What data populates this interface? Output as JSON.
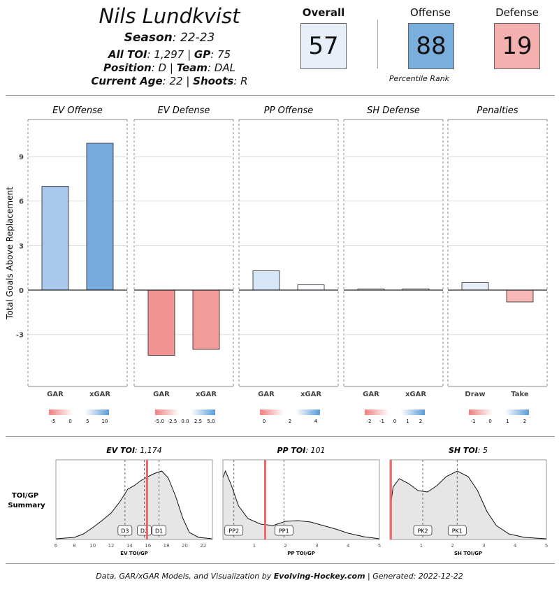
{
  "player": {
    "name": "Nils Lundkvist",
    "season_label": "Season",
    "season": "22-23",
    "toi_label": "All TOI",
    "toi": "1,297",
    "gp_label": "GP",
    "gp": "75",
    "position_label": "Position",
    "position": "D",
    "team_label": "Team",
    "team": "DAL",
    "age_label": "Current Age",
    "age": "22",
    "shoots_label": "Shoots",
    "shoots": "R"
  },
  "ranks": {
    "overall": {
      "label": "Overall",
      "value": "57",
      "color": "#e8eff9"
    },
    "offense": {
      "label": "Offense",
      "value": "88",
      "color": "#7aaedc"
    },
    "defense": {
      "label": "Defense",
      "value": "19",
      "color": "#f5b0b0"
    },
    "note": "Percentile Rank"
  },
  "chart_data": [
    {
      "type": "bar",
      "ylabel": "Total Goals Above Replacement",
      "ylim": [
        -6.5,
        11.5
      ],
      "yticks": [
        -3,
        0,
        3,
        6,
        9
      ],
      "grid": true,
      "panels": [
        {
          "title": "EV Offense",
          "categories": [
            "GAR",
            "xGAR"
          ],
          "values": [
            7.0,
            9.9
          ],
          "colors": [
            "#a9c8ec",
            "#77aadd"
          ],
          "legend_ticks": [
            "-5",
            "0",
            "5",
            "10"
          ]
        },
        {
          "title": "EV Defense",
          "categories": [
            "GAR",
            "xGAR"
          ],
          "values": [
            -4.4,
            -4.0
          ],
          "colors": [
            "#f29494",
            "#f39c9c"
          ],
          "legend_ticks": [
            "-5.0",
            "-2.5",
            "0.0",
            "2.5",
            "5.0"
          ]
        },
        {
          "title": "PP Offense",
          "categories": [
            "GAR",
            "xGAR"
          ],
          "values": [
            1.3,
            0.35
          ],
          "colors": [
            "#d7e6f7",
            "#fbfcff"
          ],
          "legend_ticks": [
            "0",
            "2",
            "4"
          ]
        },
        {
          "title": "SH Defense",
          "categories": [
            "GAR",
            "xGAR"
          ],
          "values": [
            0.07,
            0.08
          ],
          "colors": [
            "#f8fafd",
            "#f8fafd"
          ],
          "legend_ticks": [
            "-2",
            "-1",
            "0",
            "1",
            "2"
          ]
        },
        {
          "title": "Penalties",
          "categories": [
            "Draw",
            "Take"
          ],
          "values": [
            0.5,
            -0.8
          ],
          "colors": [
            "#e5edf9",
            "#f9b8b8"
          ],
          "legend_ticks": [
            "-1",
            "0",
            "1",
            "2"
          ]
        }
      ]
    },
    {
      "type": "area",
      "section_label": "TOI/GP Summary",
      "panels": [
        {
          "title_label": "EV TOI",
          "title_value": "1,174",
          "xlabel": "EV TOI/GP",
          "xlim": [
            6,
            23
          ],
          "xticks": [
            "6",
            "8",
            "10",
            "12",
            "14",
            "16",
            "18",
            "20",
            "22"
          ],
          "xtick_values": [
            6,
            8,
            10,
            12,
            14,
            16,
            18,
            20,
            22
          ],
          "marker": 15.9,
          "lines": [
            {
              "label": "D3",
              "x": 13.5
            },
            {
              "label": "D2",
              "x": 15.6
            },
            {
              "label": "D1",
              "x": 17.2
            }
          ],
          "density": [
            [
              6,
              0.01
            ],
            [
              7,
              0.02
            ],
            [
              8,
              0.03
            ],
            [
              9,
              0.08
            ],
            [
              10,
              0.17
            ],
            [
              11,
              0.27
            ],
            [
              12,
              0.38
            ],
            [
              13,
              0.55
            ],
            [
              13.8,
              0.72
            ],
            [
              14.5,
              0.77
            ],
            [
              15.2,
              0.84
            ],
            [
              16,
              0.9
            ],
            [
              16.8,
              0.95
            ],
            [
              17.5,
              0.98
            ],
            [
              18.2,
              0.88
            ],
            [
              19,
              0.62
            ],
            [
              19.8,
              0.3
            ],
            [
              20.5,
              0.1
            ],
            [
              21.5,
              0.03
            ],
            [
              23,
              0.01
            ]
          ]
        },
        {
          "title_label": "PP TOI",
          "title_value": "101",
          "xlabel": "PP TOI/GP",
          "xlim": [
            0,
            5
          ],
          "xticks": [
            "1",
            "2",
            "3",
            "4",
            "5"
          ],
          "xtick_values": [
            1,
            2,
            3,
            4,
            5
          ],
          "marker": 1.35,
          "lines": [
            {
              "label": "PP2",
              "x": 0.35
            },
            {
              "label": "PP1",
              "x": 1.95
            }
          ],
          "density": [
            [
              0,
              0.88
            ],
            [
              0.08,
              0.98
            ],
            [
              0.25,
              0.8
            ],
            [
              0.5,
              0.48
            ],
            [
              0.8,
              0.3
            ],
            [
              1.2,
              0.22
            ],
            [
              1.6,
              0.2
            ],
            [
              2.0,
              0.26
            ],
            [
              2.4,
              0.27
            ],
            [
              2.8,
              0.25
            ],
            [
              3.2,
              0.2
            ],
            [
              3.6,
              0.15
            ],
            [
              4.0,
              0.09
            ],
            [
              4.5,
              0.04
            ],
            [
              5,
              0.01
            ]
          ]
        },
        {
          "title_label": "SH TOI",
          "title_value": "5",
          "xlabel": "SH TOI/GP",
          "xlim": [
            0,
            5
          ],
          "xticks": [
            "1",
            "2",
            "3",
            "4",
            "5"
          ],
          "xtick_values": [
            1,
            2,
            3,
            4,
            5
          ],
          "marker": 0.03,
          "lines": [
            {
              "label": "PK2",
              "x": 1.05
            },
            {
              "label": "PK1",
              "x": 2.15
            }
          ],
          "density": [
            [
              0,
              0.4
            ],
            [
              0.1,
              0.75
            ],
            [
              0.3,
              0.87
            ],
            [
              0.6,
              0.8
            ],
            [
              0.9,
              0.7
            ],
            [
              1.2,
              0.68
            ],
            [
              1.5,
              0.77
            ],
            [
              1.8,
              0.9
            ],
            [
              2.15,
              0.98
            ],
            [
              2.5,
              0.9
            ],
            [
              2.8,
              0.7
            ],
            [
              3.1,
              0.4
            ],
            [
              3.4,
              0.2
            ],
            [
              3.8,
              0.08
            ],
            [
              4.3,
              0.03
            ],
            [
              5,
              0.01
            ]
          ]
        }
      ]
    }
  ],
  "footer": {
    "prefix": "Data, GAR/xGAR Models, and Visualization by ",
    "brand": "Evolving-Hockey.com",
    "suffix": " | Generated: 2022-12-22"
  }
}
